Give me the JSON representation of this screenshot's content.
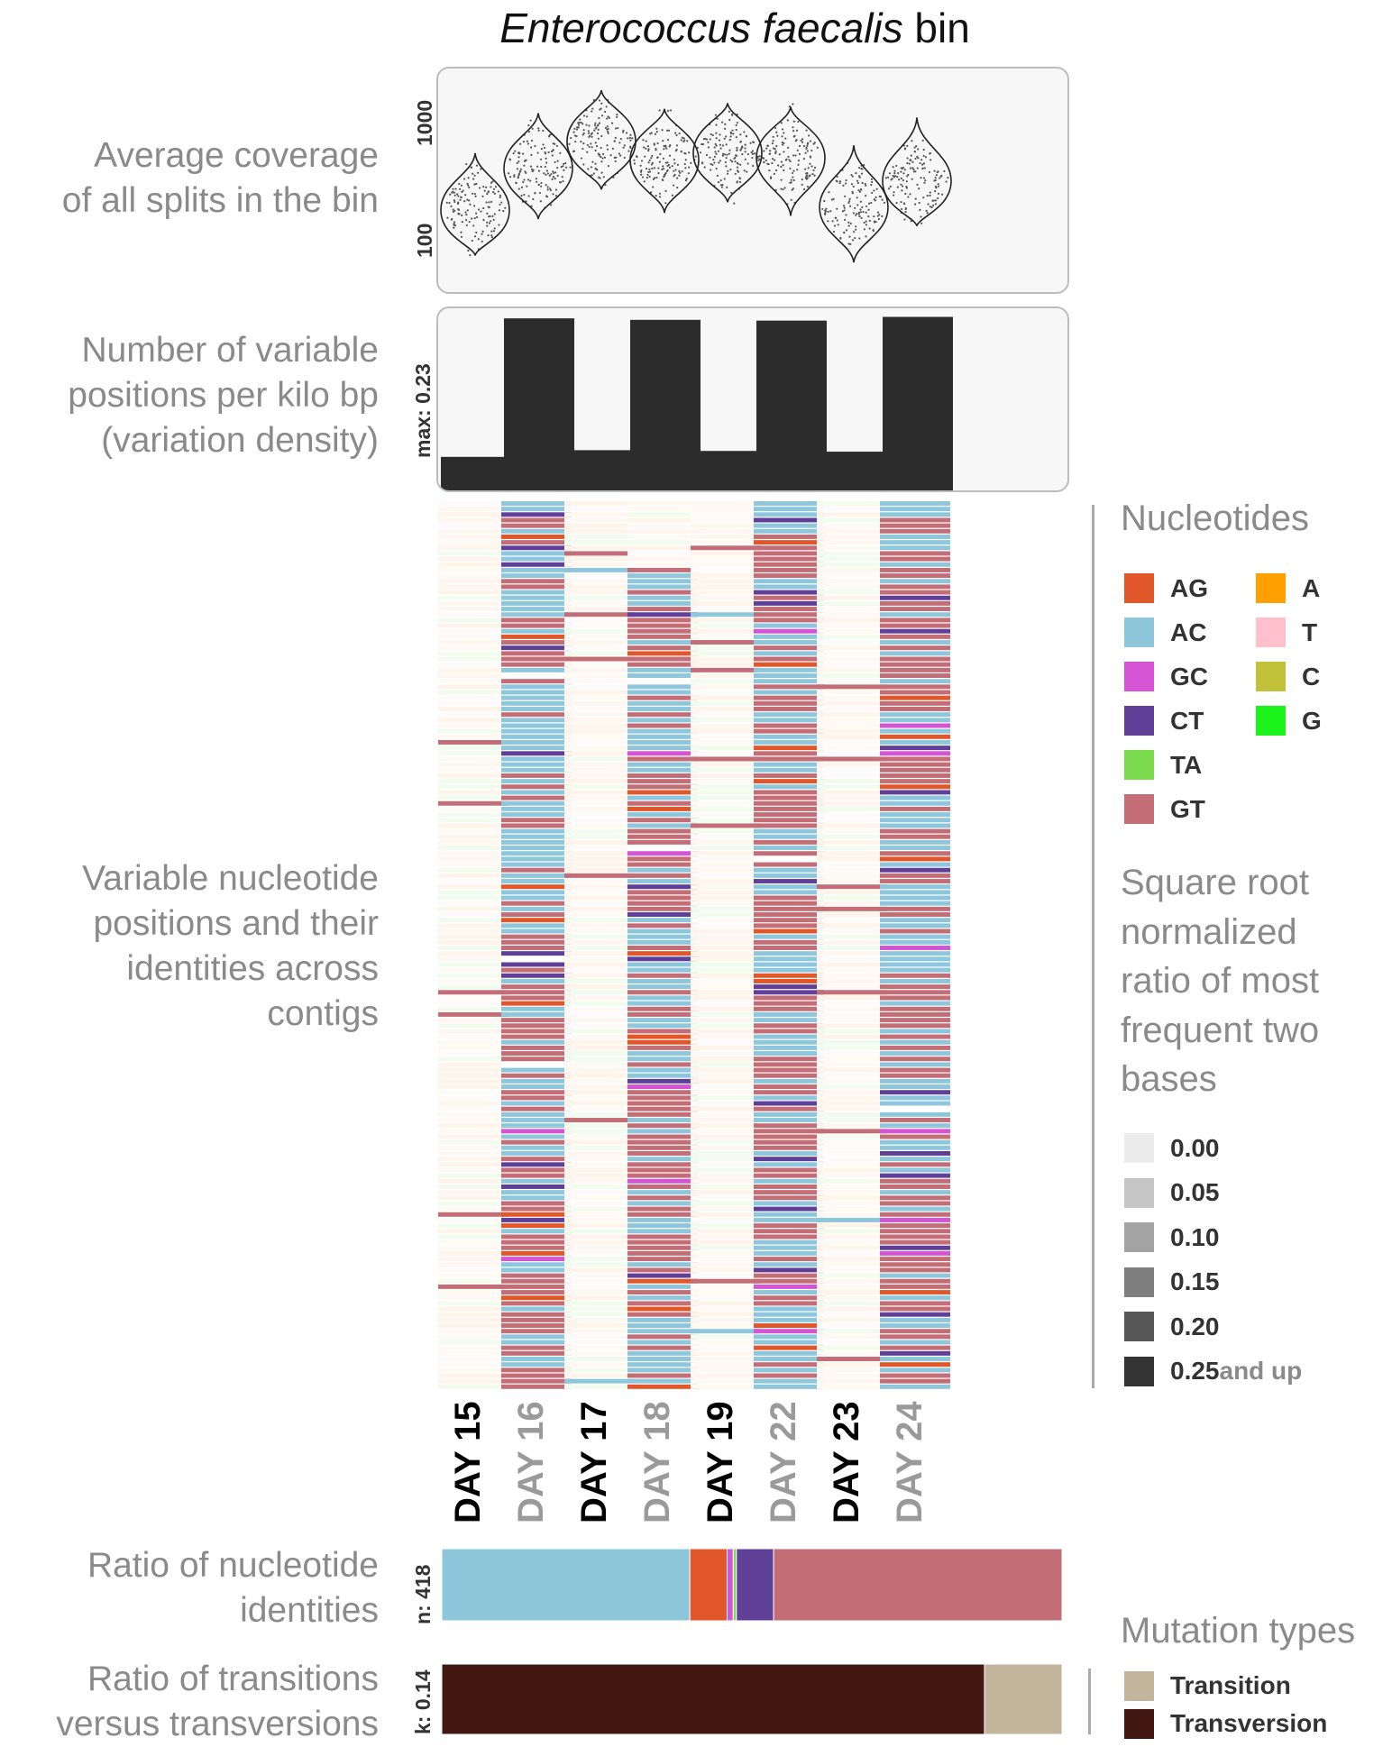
{
  "title": {
    "italic": "Enterococcus faecalis",
    "rest": " bin"
  },
  "labels": {
    "coverage": [
      "Average coverage",
      "of all splits in the bin"
    ],
    "density": [
      "Number of variable",
      "positions per kilo bp",
      "(variation density)"
    ],
    "heatmap": [
      "Variable nucleotide",
      "positions and their",
      "identities across",
      "contigs"
    ],
    "ratio": [
      "Ratio of nucleotide",
      "identities"
    ],
    "tt": [
      "Ratio of transitions",
      "versus transversions"
    ]
  },
  "chart_data": [
    {
      "type": "violin",
      "name": "coverage",
      "scale": "log",
      "ytick_labels": [
        "100",
        "1000"
      ],
      "categories": [
        "DAY 15",
        "DAY 16",
        "DAY 17",
        "DAY 18",
        "DAY 19",
        "DAY 22",
        "DAY 23",
        "DAY 24"
      ],
      "medians": [
        190,
        420,
        700,
        490,
        560,
        510,
        200,
        330
      ],
      "min": [
        80,
        160,
        280,
        180,
        220,
        170,
        70,
        140
      ],
      "max": [
        560,
        1200,
        1850,
        1300,
        1450,
        1350,
        650,
        1100
      ]
    },
    {
      "type": "bar",
      "name": "variation density",
      "max_label": "max: 0.23",
      "ylim": [
        0,
        0.23
      ],
      "categories": [
        "DAY 15",
        "DAY 16",
        "DAY 17",
        "DAY 18",
        "DAY 19",
        "DAY 22",
        "DAY 23",
        "DAY 24"
      ],
      "values": [
        0.045,
        0.231,
        0.054,
        0.229,
        0.053,
        0.228,
        0.052,
        0.233
      ]
    },
    {
      "type": "heatmap",
      "name": "variable nucleotide positions",
      "categories": [
        "DAY 15",
        "DAY 16",
        "DAY 17",
        "DAY 18",
        "DAY 19",
        "DAY 22",
        "DAY 23",
        "DAY 24"
      ],
      "row_count": 160,
      "highlighted_columns": [
        "DAY 16",
        "DAY 18",
        "DAY 22",
        "DAY 24"
      ]
    },
    {
      "type": "stacked_bar",
      "name": "nucleotide identity ratio",
      "n_label": "n: 418",
      "segments": [
        {
          "name": "AC",
          "value": 0.4
        },
        {
          "name": "AG",
          "value": 0.06
        },
        {
          "name": "GC",
          "value": 0.01
        },
        {
          "name": "TA",
          "value": 0.005
        },
        {
          "name": "CT",
          "value": 0.06
        },
        {
          "name": "GT",
          "value": 0.465
        }
      ]
    },
    {
      "type": "stacked_bar",
      "name": "transitions versus transversions",
      "k_label": "k: 0.14",
      "segments": [
        {
          "name": "Transversion",
          "value": 0.875
        },
        {
          "name": "Transition",
          "value": 0.125
        }
      ]
    }
  ],
  "nucleotides_legend": {
    "title": "Nucleotides",
    "col1": [
      {
        "label": "AG",
        "color": "#E1572A"
      },
      {
        "label": "AC",
        "color": "#8EC7DC"
      },
      {
        "label": "GC",
        "color": "#D454D4"
      },
      {
        "label": "CT",
        "color": "#5F3F98"
      },
      {
        "label": "TA",
        "color": "#7AD94C"
      },
      {
        "label": "GT",
        "color": "#C36E76"
      }
    ],
    "col2": [
      {
        "label": "A",
        "color": "#FFA000"
      },
      {
        "label": "T",
        "color": "#FFC0CB"
      },
      {
        "label": "C",
        "color": "#C2C23A"
      },
      {
        "label": "G",
        "color": "#1CF21C"
      }
    ]
  },
  "ratio_legend": {
    "title": [
      "Square root",
      "normalized",
      "ratio of most",
      "frequent two",
      "bases"
    ],
    "items": [
      {
        "label": "0.00",
        "color": "#ececec"
      },
      {
        "label": "0.05",
        "color": "#c6c6c6"
      },
      {
        "label": "0.10",
        "color": "#a3a3a3"
      },
      {
        "label": "0.15",
        "color": "#7e7e7e"
      },
      {
        "label": "0.20",
        "color": "#575757"
      },
      {
        "label": "0.25",
        "color": "#333333"
      }
    ],
    "and_up": " and up"
  },
  "mutation_legend": {
    "title": "Mutation types",
    "items": [
      {
        "label": "Transition",
        "color": "#C3B49C"
      },
      {
        "label": "Transversion",
        "color": "#441812"
      }
    ]
  }
}
